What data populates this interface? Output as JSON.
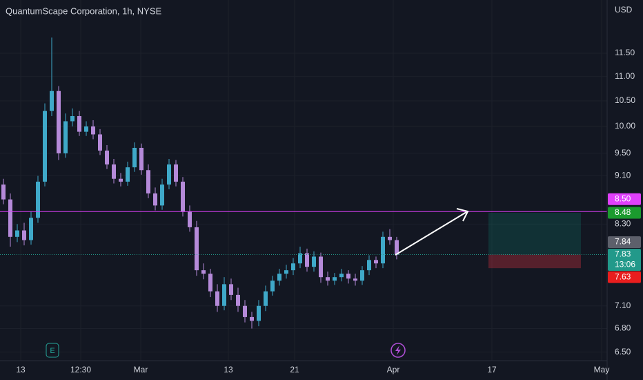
{
  "chart_data": {
    "type": "candlestick",
    "title": "QuantumScape Corporation, 1h, NYSE",
    "currency": "USD",
    "log_scale": true,
    "grid": true,
    "up_color": "#3fa9c9",
    "down_color": "#b58ad9",
    "ylim": [
      6.37,
      12.73
    ],
    "yticks": [
      {
        "value": 11.5,
        "label": "11.50"
      },
      {
        "value": 11.0,
        "label": "11.00"
      },
      {
        "value": 10.5,
        "label": "10.50"
      },
      {
        "value": 10.0,
        "label": "10.00"
      },
      {
        "value": 9.5,
        "label": "9.50"
      },
      {
        "value": 9.1,
        "label": "9.10"
      },
      {
        "value": 8.3,
        "label": "8.30"
      },
      {
        "value": 7.1,
        "label": "7.10"
      },
      {
        "value": 6.8,
        "label": "6.80"
      },
      {
        "value": 6.5,
        "label": "6.50"
      }
    ],
    "x_labels": [
      "13",
      "12:30",
      "Mar",
      "13",
      "21",
      "Apr",
      "17",
      "May"
    ],
    "open": [
      8.95,
      8.7,
      8.1,
      8.2,
      8.05,
      8.4,
      9.0,
      10.3,
      10.7,
      9.5,
      10.1,
      10.2,
      9.9,
      10.0,
      9.85,
      9.55,
      9.3,
      9.05,
      9.0,
      9.25,
      9.6,
      9.2,
      8.8,
      8.6,
      8.95,
      9.3,
      9.0,
      8.5,
      8.25,
      7.6,
      7.55,
      7.3,
      7.1,
      7.4,
      7.25,
      7.1,
      6.95,
      6.9,
      7.1,
      7.3,
      7.45,
      7.55,
      7.6,
      7.7,
      7.85,
      7.65,
      7.8,
      7.5,
      7.45,
      7.5,
      7.55,
      7.48,
      7.45,
      7.6,
      7.75,
      7.7,
      8.1,
      8.05
    ],
    "high": [
      9.05,
      8.8,
      8.3,
      8.32,
      8.5,
      9.1,
      10.45,
      11.85,
      10.8,
      10.25,
      10.35,
      10.3,
      10.1,
      10.12,
      9.95,
      9.65,
      9.4,
      9.15,
      9.35,
      9.7,
      9.68,
      9.3,
      8.9,
      9.05,
      9.4,
      9.38,
      9.08,
      8.6,
      8.35,
      7.7,
      7.62,
      7.4,
      7.5,
      7.48,
      7.35,
      7.18,
      7.02,
      7.18,
      7.38,
      7.52,
      7.62,
      7.68,
      7.78,
      7.95,
      7.92,
      7.88,
      7.86,
      7.58,
      7.56,
      7.62,
      7.6,
      7.55,
      7.66,
      7.82,
      7.8,
      8.18,
      8.22,
      8.1
    ],
    "low": [
      8.62,
      7.95,
      8.02,
      7.97,
      7.98,
      8.32,
      8.92,
      10.2,
      9.38,
      9.42,
      10.0,
      9.82,
      9.82,
      9.76,
      9.47,
      9.22,
      8.97,
      8.92,
      8.93,
      9.17,
      9.12,
      8.72,
      8.52,
      8.53,
      8.87,
      8.92,
      8.42,
      8.18,
      7.52,
      7.47,
      7.22,
      7.02,
      7.04,
      7.18,
      7.02,
      6.88,
      6.8,
      6.83,
      7.03,
      7.24,
      7.38,
      7.48,
      7.53,
      7.63,
      7.58,
      7.58,
      7.42,
      7.38,
      7.39,
      7.44,
      7.41,
      7.38,
      7.39,
      7.53,
      7.63,
      7.63,
      7.98,
      7.76
    ],
    "close": [
      8.7,
      8.1,
      8.2,
      8.05,
      8.4,
      9.0,
      10.3,
      10.7,
      9.5,
      10.1,
      10.2,
      9.9,
      10.0,
      9.85,
      9.55,
      9.3,
      9.05,
      9.0,
      9.25,
      9.6,
      9.2,
      8.8,
      8.6,
      8.95,
      9.3,
      9.0,
      8.5,
      8.25,
      7.6,
      7.55,
      7.3,
      7.1,
      7.4,
      7.25,
      7.1,
      6.95,
      6.9,
      7.1,
      7.3,
      7.45,
      7.55,
      7.6,
      7.7,
      7.85,
      7.65,
      7.8,
      7.5,
      7.45,
      7.5,
      7.55,
      7.48,
      7.45,
      7.6,
      7.75,
      7.7,
      8.1,
      8.05,
      7.83
    ],
    "horizontal_line": {
      "value": 8.5,
      "color": "#e040fb"
    },
    "position": {
      "target": 8.48,
      "entry": 7.83,
      "stop": 7.63
    },
    "price_labels": [
      {
        "value": 8.5,
        "label": "8.50",
        "color": "#e040fb"
      },
      {
        "value": 8.48,
        "label": "8.48",
        "color": "#1b9b2e"
      },
      {
        "value": 7.84,
        "label": "7.84",
        "color": "#5d606b"
      },
      {
        "value": 7.83,
        "label": "7.83",
        "color": "#22998a"
      },
      {
        "value": 7.63,
        "label": "7.63",
        "color": "#e91e1e"
      }
    ],
    "countdown": "13:06",
    "earnings_marker": "E"
  }
}
